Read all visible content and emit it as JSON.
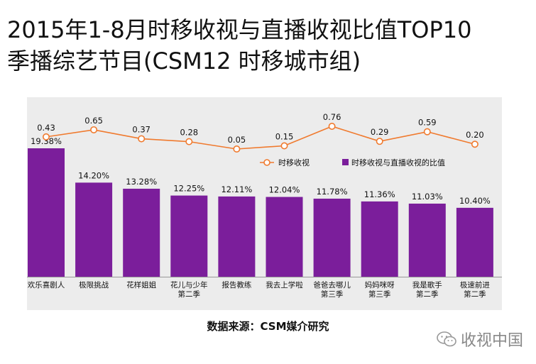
{
  "title": {
    "line1": "2015年1-8月时移收视与直播收视比值TOP10",
    "line2": "季播综艺节目(CSM12 时移城市组)"
  },
  "source": "数据来源：CSM媒介研究",
  "watermark": "收视中国",
  "colors": {
    "bar": "#7b1e9b",
    "line": "#f07a2e",
    "panel": "#ececec",
    "axis": "#999999"
  },
  "chart_data": {
    "type": "bar+line",
    "categories": [
      [
        "欢乐喜剧人"
      ],
      [
        "极限挑战"
      ],
      [
        "花样姐姐"
      ],
      [
        "花儿与少年",
        "第二季"
      ],
      [
        "报告教练"
      ],
      [
        "我去上学啦"
      ],
      [
        "爸爸去哪儿",
        "第三季"
      ],
      [
        "妈妈咪呀",
        "第三季"
      ],
      [
        "我是歌手",
        "第二季"
      ],
      [
        "极速前进",
        "第二季"
      ]
    ],
    "series": [
      {
        "name": "时移收视与直播收视的比值",
        "type": "bar",
        "values": [
          19.38,
          14.2,
          13.28,
          12.25,
          12.11,
          12.04,
          11.78,
          11.36,
          11.03,
          10.4
        ],
        "labels": [
          "19.38%",
          "14.20%",
          "13.28%",
          "12.25%",
          "12.11%",
          "12.04%",
          "11.78%",
          "11.36%",
          "11.03%",
          "10.40%"
        ],
        "ylim": [
          0,
          21.5
        ]
      },
      {
        "name": "时移收视",
        "type": "line",
        "values": [
          0.43,
          0.65,
          0.37,
          0.28,
          0.05,
          0.15,
          0.76,
          0.29,
          0.59,
          0.2
        ],
        "labels": [
          "0.43",
          "0.65",
          "0.37",
          "0.28",
          "0.05",
          "0.15",
          "0.76",
          "0.29",
          "0.59",
          "0.20"
        ],
        "ylim": [
          0.05,
          0.76
        ]
      }
    ],
    "legend": [
      {
        "name": "时移收视",
        "marker": "line-circle"
      },
      {
        "name": "时移收视与直播收视的比值",
        "marker": "square"
      }
    ],
    "legend_position": "right, between line and bars",
    "grid": false
  }
}
